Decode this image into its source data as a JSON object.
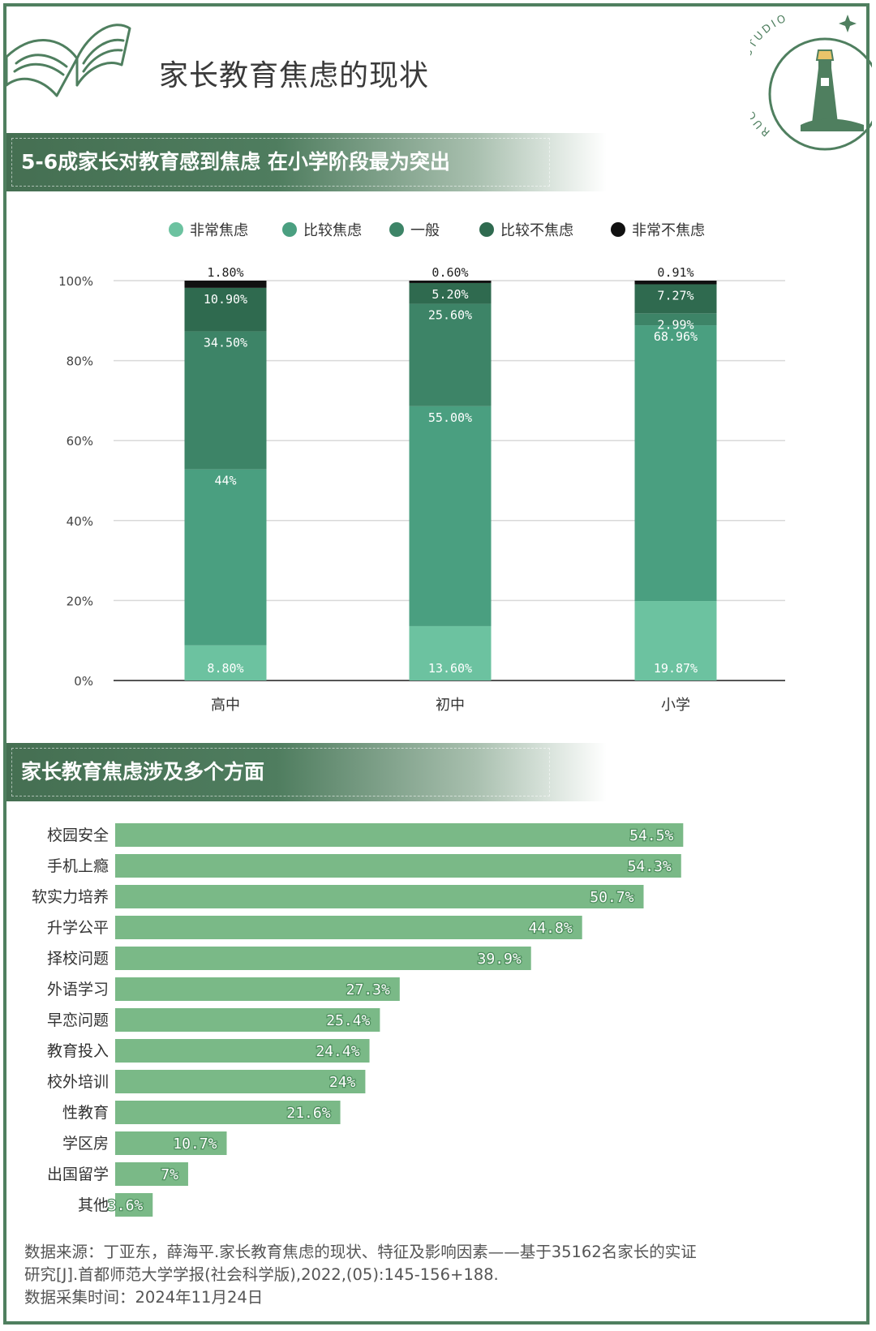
{
  "title": "家长教育焦虑的现状",
  "logo": {
    "text": "RUC NEWS STUDIO"
  },
  "colors": {
    "frame": "#4f7f5f",
    "very": "#6cc2a0",
    "fairly": "#4a9f80",
    "neutral": "#3d8467",
    "fairly_not": "#2f6a4f",
    "not_at_all": "#111111",
    "bar": "#7ab987"
  },
  "section1": {
    "title": "5-6成家长对教育感到焦虑 在小学阶段最为突出"
  },
  "section2": {
    "title": "家长教育焦虑涉及多个方面"
  },
  "source": {
    "line1": "数据来源：丁亚东，薛海平.家长教育焦虑的现状、特征及影响因素——基于35162名家长的实证",
    "line2": "研究[J].首都师范大学学报(社会科学版),2022,(05):145-156+188.",
    "line3": "数据采集时间：2024年11月24日"
  },
  "chart_data": [
    {
      "type": "bar",
      "stacked": true,
      "categories": [
        "高中",
        "初中",
        "小学"
      ],
      "y_ticks": [
        "0%",
        "20%",
        "40%",
        "60%",
        "80%",
        "100%"
      ],
      "ylim": [
        0,
        100
      ],
      "grid": true,
      "legend_position": "top",
      "series": [
        {
          "name": "非常焦虑",
          "values": [
            8.8,
            13.6,
            19.87
          ],
          "labels": [
            "8.80%",
            "13.60%",
            "19.87%"
          ]
        },
        {
          "name": "比较焦虑",
          "values": [
            44,
            55.0,
            68.96
          ],
          "labels": [
            "44%",
            "55.00%",
            "68.96%"
          ]
        },
        {
          "name": "一般",
          "values": [
            34.5,
            25.6,
            2.99
          ],
          "labels": [
            "34.50%",
            "25.60%",
            "2.99%"
          ]
        },
        {
          "name": "比较不焦虑",
          "values": [
            10.9,
            5.2,
            7.27
          ],
          "labels": [
            "10.90%",
            "5.20%",
            "7.27%"
          ]
        },
        {
          "name": "非常不焦虑",
          "values": [
            1.8,
            0.6,
            0.91
          ],
          "labels": [
            "1.80%",
            "0.60%",
            "0.91%"
          ]
        }
      ]
    },
    {
      "type": "bar",
      "orientation": "horizontal",
      "categories": [
        "校园安全",
        "手机上瘾",
        "软实力培养",
        "升学公平",
        "择校问题",
        "外语学习",
        "早恋问题",
        "教育投入",
        "校外培训",
        "性教育",
        "学区房",
        "出国留学",
        "其他"
      ],
      "values": [
        54.5,
        54.3,
        50.7,
        44.8,
        39.9,
        27.3,
        25.4,
        24.4,
        24,
        21.6,
        10.7,
        7,
        3.6
      ],
      "labels": [
        "54.5%",
        "54.3%",
        "50.7%",
        "44.8%",
        "39.9%",
        "27.3%",
        "25.4%",
        "24.4%",
        "24%",
        "21.6%",
        "10.7%",
        "7%",
        "3.6%"
      ]
    }
  ]
}
